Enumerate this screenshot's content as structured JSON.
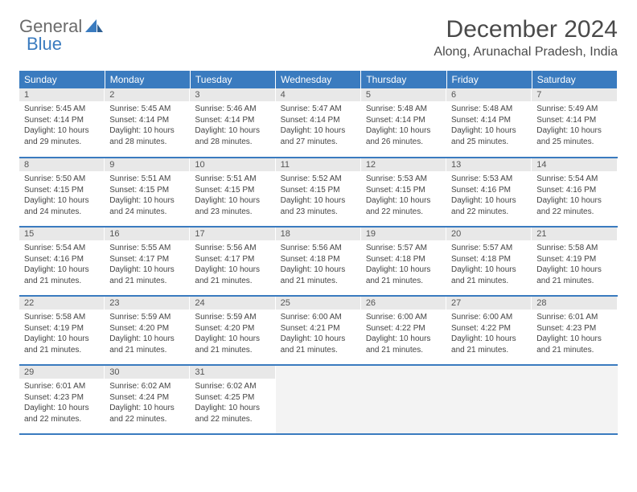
{
  "logo": {
    "text1": "General",
    "text2": "Blue"
  },
  "title": "December 2024",
  "location": "Along, Arunachal Pradesh, India",
  "day_headers": [
    "Sunday",
    "Monday",
    "Tuesday",
    "Wednesday",
    "Thursday",
    "Friday",
    "Saturday"
  ],
  "colors": {
    "header_bg": "#3a7bbf",
    "header_text": "#ffffff",
    "daynum_bg": "#e8e8e8",
    "cell_border": "#3a7bbf",
    "page_bg": "#ffffff",
    "body_text": "#444444"
  },
  "typography": {
    "title_fontsize": 30,
    "location_fontsize": 16,
    "header_fontsize": 12,
    "daynum_fontsize": 11,
    "body_fontsize": 10
  },
  "layout": {
    "columns": 7,
    "rows": 5,
    "start_day_index": 0,
    "days_in_month": 31
  },
  "days": [
    {
      "n": 1,
      "sunrise": "5:45 AM",
      "sunset": "4:14 PM",
      "daylight": "10 hours and 29 minutes."
    },
    {
      "n": 2,
      "sunrise": "5:45 AM",
      "sunset": "4:14 PM",
      "daylight": "10 hours and 28 minutes."
    },
    {
      "n": 3,
      "sunrise": "5:46 AM",
      "sunset": "4:14 PM",
      "daylight": "10 hours and 28 minutes."
    },
    {
      "n": 4,
      "sunrise": "5:47 AM",
      "sunset": "4:14 PM",
      "daylight": "10 hours and 27 minutes."
    },
    {
      "n": 5,
      "sunrise": "5:48 AM",
      "sunset": "4:14 PM",
      "daylight": "10 hours and 26 minutes."
    },
    {
      "n": 6,
      "sunrise": "5:48 AM",
      "sunset": "4:14 PM",
      "daylight": "10 hours and 25 minutes."
    },
    {
      "n": 7,
      "sunrise": "5:49 AM",
      "sunset": "4:14 PM",
      "daylight": "10 hours and 25 minutes."
    },
    {
      "n": 8,
      "sunrise": "5:50 AM",
      "sunset": "4:15 PM",
      "daylight": "10 hours and 24 minutes."
    },
    {
      "n": 9,
      "sunrise": "5:51 AM",
      "sunset": "4:15 PM",
      "daylight": "10 hours and 24 minutes."
    },
    {
      "n": 10,
      "sunrise": "5:51 AM",
      "sunset": "4:15 PM",
      "daylight": "10 hours and 23 minutes."
    },
    {
      "n": 11,
      "sunrise": "5:52 AM",
      "sunset": "4:15 PM",
      "daylight": "10 hours and 23 minutes."
    },
    {
      "n": 12,
      "sunrise": "5:53 AM",
      "sunset": "4:15 PM",
      "daylight": "10 hours and 22 minutes."
    },
    {
      "n": 13,
      "sunrise": "5:53 AM",
      "sunset": "4:16 PM",
      "daylight": "10 hours and 22 minutes."
    },
    {
      "n": 14,
      "sunrise": "5:54 AM",
      "sunset": "4:16 PM",
      "daylight": "10 hours and 22 minutes."
    },
    {
      "n": 15,
      "sunrise": "5:54 AM",
      "sunset": "4:16 PM",
      "daylight": "10 hours and 21 minutes."
    },
    {
      "n": 16,
      "sunrise": "5:55 AM",
      "sunset": "4:17 PM",
      "daylight": "10 hours and 21 minutes."
    },
    {
      "n": 17,
      "sunrise": "5:56 AM",
      "sunset": "4:17 PM",
      "daylight": "10 hours and 21 minutes."
    },
    {
      "n": 18,
      "sunrise": "5:56 AM",
      "sunset": "4:18 PM",
      "daylight": "10 hours and 21 minutes."
    },
    {
      "n": 19,
      "sunrise": "5:57 AM",
      "sunset": "4:18 PM",
      "daylight": "10 hours and 21 minutes."
    },
    {
      "n": 20,
      "sunrise": "5:57 AM",
      "sunset": "4:18 PM",
      "daylight": "10 hours and 21 minutes."
    },
    {
      "n": 21,
      "sunrise": "5:58 AM",
      "sunset": "4:19 PM",
      "daylight": "10 hours and 21 minutes."
    },
    {
      "n": 22,
      "sunrise": "5:58 AM",
      "sunset": "4:19 PM",
      "daylight": "10 hours and 21 minutes."
    },
    {
      "n": 23,
      "sunrise": "5:59 AM",
      "sunset": "4:20 PM",
      "daylight": "10 hours and 21 minutes."
    },
    {
      "n": 24,
      "sunrise": "5:59 AM",
      "sunset": "4:20 PM",
      "daylight": "10 hours and 21 minutes."
    },
    {
      "n": 25,
      "sunrise": "6:00 AM",
      "sunset": "4:21 PM",
      "daylight": "10 hours and 21 minutes."
    },
    {
      "n": 26,
      "sunrise": "6:00 AM",
      "sunset": "4:22 PM",
      "daylight": "10 hours and 21 minutes."
    },
    {
      "n": 27,
      "sunrise": "6:00 AM",
      "sunset": "4:22 PM",
      "daylight": "10 hours and 21 minutes."
    },
    {
      "n": 28,
      "sunrise": "6:01 AM",
      "sunset": "4:23 PM",
      "daylight": "10 hours and 21 minutes."
    },
    {
      "n": 29,
      "sunrise": "6:01 AM",
      "sunset": "4:23 PM",
      "daylight": "10 hours and 22 minutes."
    },
    {
      "n": 30,
      "sunrise": "6:02 AM",
      "sunset": "4:24 PM",
      "daylight": "10 hours and 22 minutes."
    },
    {
      "n": 31,
      "sunrise": "6:02 AM",
      "sunset": "4:25 PM",
      "daylight": "10 hours and 22 minutes."
    }
  ],
  "labels": {
    "sunrise": "Sunrise:",
    "sunset": "Sunset:",
    "daylight": "Daylight:"
  }
}
